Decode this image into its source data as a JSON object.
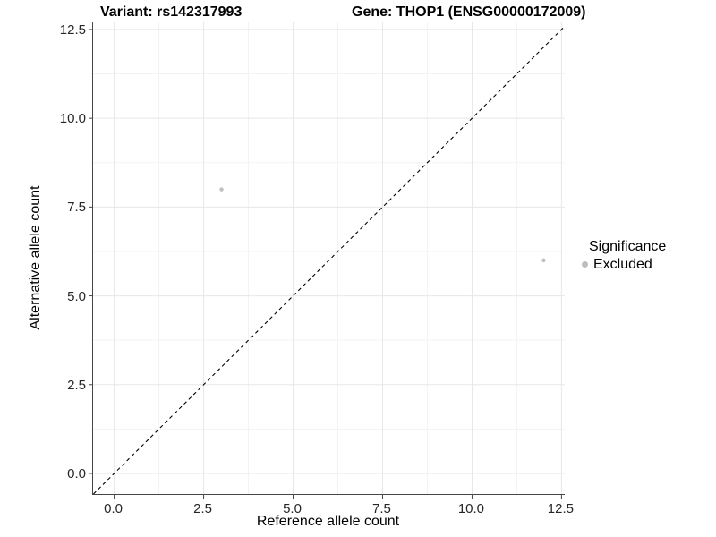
{
  "chart_data": {
    "type": "scatter",
    "titles": {
      "left": "Variant: rs142317993",
      "right": "Gene: THOP1 (ENSG00000172009)"
    },
    "xlabel": "Reference allele count",
    "ylabel": "Alternative allele count",
    "x_ticks": {
      "values": [
        0,
        2.5,
        5,
        7.5,
        10,
        12.5
      ],
      "labels": [
        "0.0",
        "2.5",
        "5.0",
        "7.5",
        "10.0",
        "12.5"
      ]
    },
    "y_ticks": {
      "values": [
        0,
        2.5,
        5,
        7.5,
        10,
        12.5
      ],
      "labels": [
        "0.0",
        "2.5",
        "5.0",
        "7.5",
        "10.0",
        "12.5"
      ]
    },
    "x_minor": [
      1.25,
      3.75,
      6.25,
      8.75,
      11.25
    ],
    "y_minor": [
      1.25,
      3.75,
      6.25,
      8.75,
      11.25
    ],
    "xlim": [
      -0.59,
      12.59
    ],
    "ylim": [
      -0.58,
      12.7
    ],
    "grid": true,
    "legend_position": "right",
    "points": [
      {
        "x": 3,
        "y": 8,
        "group": "Excluded"
      },
      {
        "x": 12,
        "y": 6,
        "group": "Excluded"
      }
    ],
    "abline": {
      "slope": 1,
      "intercept": 0,
      "linetype": "dashed",
      "color": "#000000"
    },
    "legend": {
      "title": "Significance",
      "items": [
        {
          "label": "Excluded",
          "color": "#bebebe"
        }
      ]
    },
    "colors": {
      "point": "#bebebe",
      "grid_major": "#e7e7e7",
      "grid_minor": "#f3f3f3",
      "axis_line": "#464646",
      "tick_mark": "#464646",
      "tick_text": "#262626"
    },
    "point_radius": 2.2,
    "legend_key_radius": 3.5
  }
}
